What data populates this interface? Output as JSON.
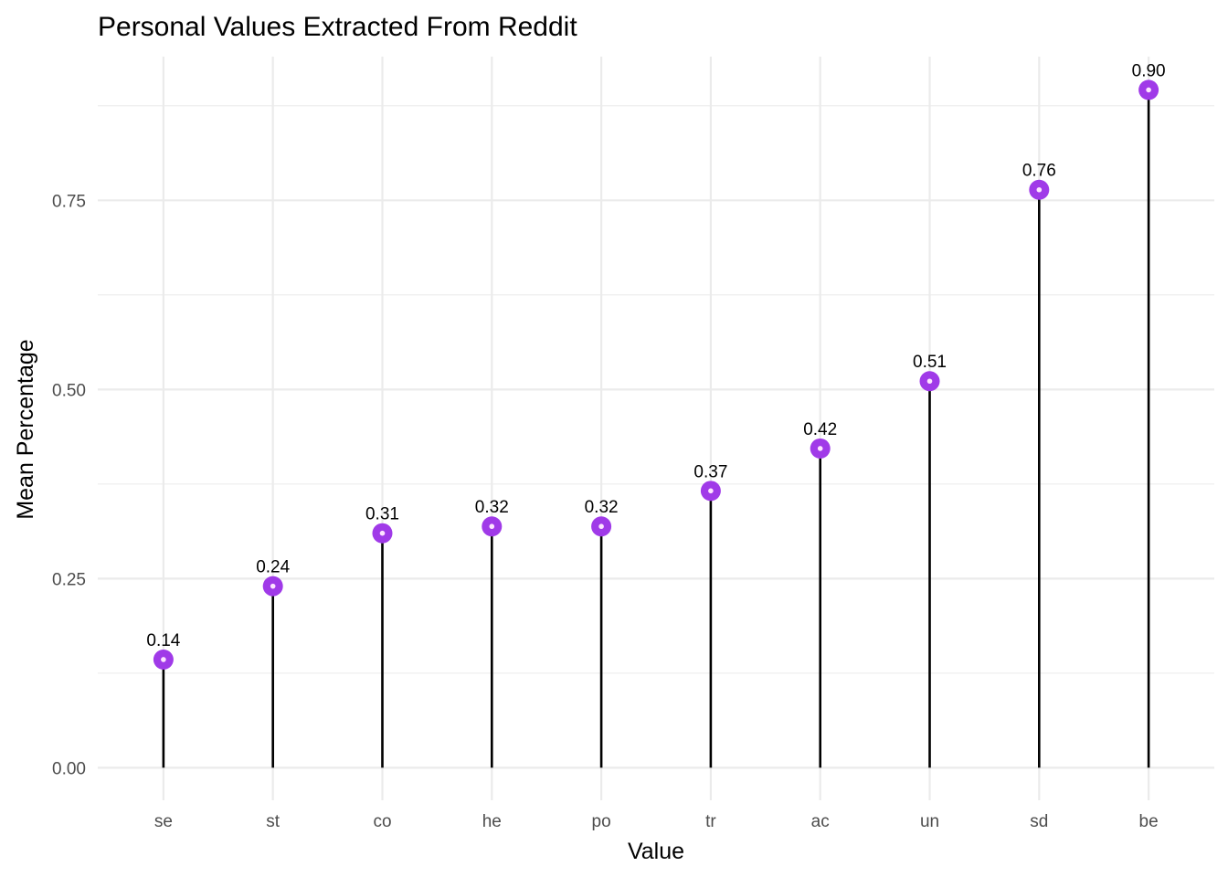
{
  "chart_data": {
    "type": "lollipop",
    "title": "Personal Values Extracted From Reddit",
    "xlabel": "Value",
    "ylabel": "Mean Percentage",
    "categories": [
      "se",
      "st",
      "co",
      "he",
      "po",
      "tr",
      "ac",
      "un",
      "sd",
      "be"
    ],
    "values": [
      0.143,
      0.24,
      0.31,
      0.319,
      0.319,
      0.366,
      0.422,
      0.511,
      0.764,
      0.896
    ],
    "value_labels": [
      "0.14",
      "0.24",
      "0.31",
      "0.32",
      "0.32",
      "0.37",
      "0.42",
      "0.51",
      "0.76",
      "0.90"
    ],
    "y_ticks": [
      0,
      0.25,
      0.5,
      0.75
    ],
    "y_tick_labels": [
      "0.00",
      "0.25",
      "0.50",
      "0.75"
    ],
    "y_minor_ticks": [
      0.125,
      0.375,
      0.625,
      0.875
    ],
    "ylim": [
      -0.043,
      0.94
    ],
    "grid": true,
    "legend": "none",
    "colors": {
      "point": "#a03ae8",
      "point_center": "#fde4ff",
      "stem": "#000000",
      "grid": "#ebebeb",
      "tick_text": "#4d4d4d"
    }
  }
}
